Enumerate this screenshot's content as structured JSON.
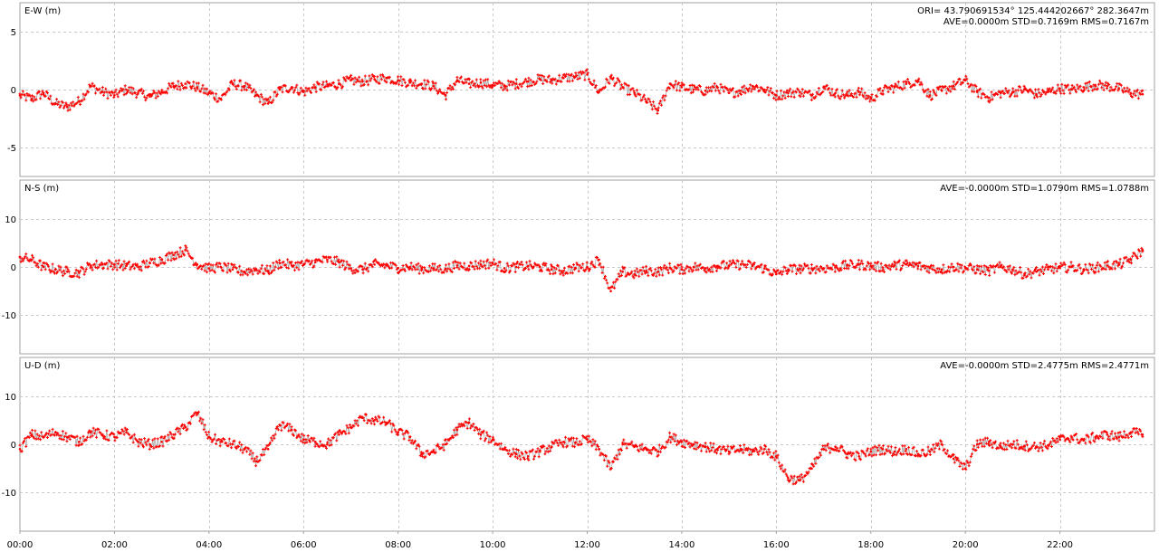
{
  "chart_data": [
    {
      "type": "scatter",
      "ylabel": "E-W (m)",
      "info": [
        "ORI= 43.790691534° 125.444202667° 282.3647m",
        "AVE=0.0000m STD=0.7169m RMS=0.7167m"
      ],
      "ylim": [
        -7.5,
        7.5
      ],
      "yticks": [
        5,
        0,
        -5
      ],
      "series": [
        {
          "color": "#ff0000",
          "x": [
            0.0,
            0.25,
            0.5,
            0.75,
            1.0,
            1.25,
            1.5,
            1.75,
            2.0,
            2.25,
            2.5,
            2.75,
            3.0,
            3.25,
            3.5,
            3.75,
            4.0,
            4.25,
            4.5,
            4.75,
            5.0,
            5.25,
            5.5,
            5.75,
            6.0,
            6.25,
            6.5,
            6.75,
            7.0,
            7.25,
            7.5,
            7.75,
            8.0,
            8.25,
            8.5,
            8.75,
            9.0,
            9.25,
            9.5,
            9.75,
            10.0,
            10.25,
            10.5,
            10.75,
            11.0,
            11.25,
            11.5,
            11.75,
            12.0,
            12.25,
            12.5,
            12.75,
            13.0,
            13.25,
            13.5,
            13.75,
            14.0,
            14.25,
            14.5,
            14.75,
            15.0,
            15.25,
            15.5,
            15.75,
            16.0,
            16.25,
            16.5,
            16.75,
            17.0,
            17.25,
            17.5,
            17.75,
            18.0,
            18.25,
            18.5,
            18.75,
            19.0,
            19.25,
            19.5,
            19.75,
            20.0,
            20.25,
            20.5,
            20.75,
            21.0,
            21.25,
            21.5,
            21.75,
            22.0,
            22.25,
            22.5,
            22.75,
            23.0,
            23.25,
            23.5,
            23.75
          ],
          "y": [
            -0.5,
            -0.8,
            -0.3,
            -1.2,
            -1.5,
            -1.0,
            0.3,
            -0.2,
            -0.5,
            0.0,
            -0.3,
            -0.6,
            -0.2,
            0.3,
            0.5,
            0.2,
            -0.3,
            -0.8,
            0.5,
            0.3,
            -0.5,
            -1.2,
            0.0,
            0.2,
            -0.2,
            0.2,
            0.3,
            0.5,
            0.8,
            0.7,
            0.9,
            1.0,
            0.8,
            0.6,
            0.5,
            0.3,
            -0.5,
            0.8,
            0.5,
            0.6,
            0.4,
            0.3,
            0.5,
            0.7,
            0.9,
            0.8,
            1.0,
            1.1,
            1.3,
            -0.2,
            1.0,
            0.2,
            -0.3,
            -1.0,
            -1.8,
            0.5,
            0.2,
            0.0,
            -0.1,
            0.2,
            -0.3,
            -0.1,
            0.3,
            0.0,
            -0.5,
            -0.3,
            -0.2,
            -0.5,
            0.2,
            -0.3,
            -0.5,
            -0.2,
            -0.8,
            -0.1,
            0.2,
            0.5,
            0.8,
            -0.5,
            -0.1,
            0.3,
            0.8,
            -0.2,
            -0.7,
            -0.3,
            -0.2,
            0.0,
            -0.4,
            -0.2,
            0.1,
            0.0,
            0.2,
            0.4,
            0.3,
            0.1,
            -0.3,
            -0.4
          ]
        }
      ]
    },
    {
      "type": "scatter",
      "ylabel": "N-S (m)",
      "info": [
        "AVE=-0.0000m STD=1.0790m RMS=1.0788m"
      ],
      "ylim": [
        -18,
        18
      ],
      "yticks": [
        10,
        0,
        -10
      ],
      "series": [
        {
          "color": "#ff0000",
          "x": [
            0.0,
            0.25,
            0.5,
            0.75,
            1.0,
            1.25,
            1.5,
            1.75,
            2.0,
            2.25,
            2.5,
            2.75,
            3.0,
            3.25,
            3.5,
            3.75,
            4.0,
            4.25,
            4.5,
            4.75,
            5.0,
            5.25,
            5.5,
            5.75,
            6.0,
            6.25,
            6.5,
            6.75,
            7.0,
            7.25,
            7.5,
            7.75,
            8.0,
            8.25,
            8.5,
            8.75,
            9.0,
            9.25,
            9.5,
            9.75,
            10.0,
            10.25,
            10.5,
            10.75,
            11.0,
            11.25,
            11.5,
            11.75,
            12.0,
            12.25,
            12.5,
            12.75,
            13.0,
            13.25,
            13.5,
            13.75,
            14.0,
            14.25,
            14.5,
            14.75,
            15.0,
            15.25,
            15.5,
            15.75,
            16.0,
            16.25,
            16.5,
            16.75,
            17.0,
            17.25,
            17.5,
            17.75,
            18.0,
            18.25,
            18.5,
            18.75,
            19.0,
            19.25,
            19.5,
            19.75,
            20.0,
            20.25,
            20.5,
            20.75,
            21.0,
            21.25,
            21.5,
            21.75,
            22.0,
            22.25,
            22.5,
            22.75,
            23.0,
            23.25,
            23.5,
            23.75
          ],
          "y": [
            2.0,
            1.5,
            0.0,
            -0.5,
            -1.0,
            -1.2,
            0.3,
            0.5,
            0.5,
            0.2,
            0.0,
            0.8,
            1.5,
            2.5,
            3.5,
            0.5,
            -0.3,
            0.0,
            -0.5,
            -1.0,
            -0.5,
            -0.8,
            0.8,
            0.3,
            0.5,
            1.0,
            1.5,
            1.0,
            -0.3,
            -0.5,
            0.5,
            0.3,
            -0.2,
            0.0,
            -0.4,
            -0.3,
            -0.4,
            0.3,
            0.2,
            0.5,
            0.8,
            -0.3,
            0.0,
            0.2,
            0.0,
            -0.5,
            -0.8,
            -0.2,
            0.0,
            1.5,
            -5.0,
            -1.0,
            -1.5,
            -0.8,
            -1.0,
            -0.2,
            -0.5,
            0.0,
            -0.3,
            0.2,
            0.3,
            0.5,
            0.2,
            -0.3,
            -1.5,
            -0.5,
            -0.4,
            -0.3,
            -0.3,
            -0.1,
            0.3,
            0.5,
            0.2,
            -0.1,
            0.3,
            0.5,
            0.2,
            -0.2,
            -0.5,
            0.0,
            -0.2,
            -0.5,
            -0.8,
            0.0,
            -0.5,
            -1.5,
            -1.0,
            -0.5,
            -0.2,
            0.0,
            -0.5,
            -0.2,
            0.3,
            0.5,
            1.5,
            3.5
          ]
        }
      ]
    },
    {
      "type": "scatter",
      "ylabel": "U-D (m)",
      "info": [
        "AVE=-0.0000m STD=2.4775m RMS=2.4771m"
      ],
      "ylim": [
        -18,
        18
      ],
      "yticks": [
        10,
        0,
        -10
      ],
      "series": [
        {
          "color": "#ff0000",
          "x": [
            0.0,
            0.25,
            0.5,
            0.75,
            1.0,
            1.25,
            1.5,
            1.75,
            2.0,
            2.25,
            2.5,
            2.75,
            3.0,
            3.25,
            3.5,
            3.75,
            4.0,
            4.25,
            4.5,
            4.75,
            5.0,
            5.25,
            5.5,
            5.75,
            6.0,
            6.25,
            6.5,
            6.75,
            7.0,
            7.25,
            7.5,
            7.75,
            8.0,
            8.25,
            8.5,
            8.75,
            9.0,
            9.25,
            9.5,
            9.75,
            10.0,
            10.25,
            10.5,
            10.75,
            11.0,
            11.25,
            11.5,
            11.75,
            12.0,
            12.25,
            12.5,
            12.75,
            13.0,
            13.25,
            13.5,
            13.75,
            14.0,
            14.25,
            14.5,
            14.75,
            15.0,
            15.25,
            15.5,
            15.75,
            16.0,
            16.25,
            16.5,
            16.75,
            17.0,
            17.25,
            17.5,
            17.75,
            18.0,
            18.25,
            18.5,
            18.75,
            19.0,
            19.25,
            19.5,
            19.75,
            20.0,
            20.25,
            20.5,
            20.75,
            21.0,
            21.25,
            21.5,
            21.75,
            22.0,
            22.25,
            22.5,
            22.75,
            23.0,
            23.25,
            23.5,
            23.75
          ],
          "y": [
            -1.0,
            2.0,
            1.5,
            2.5,
            1.5,
            0.5,
            2.5,
            2.0,
            1.5,
            2.5,
            0.5,
            0.0,
            0.5,
            2.0,
            3.5,
            6.5,
            1.5,
            0.5,
            0.0,
            -1.0,
            -3.5,
            -1.0,
            4.0,
            3.0,
            1.0,
            0.5,
            0.0,
            2.0,
            3.5,
            5.5,
            5.0,
            4.5,
            2.5,
            1.5,
            -2.0,
            -1.5,
            0.0,
            3.0,
            4.5,
            2.0,
            1.0,
            -1.0,
            -2.0,
            -2.5,
            -1.5,
            -0.5,
            0.5,
            0.3,
            1.0,
            -1.0,
            -5.0,
            0.0,
            -0.5,
            -1.0,
            -1.5,
            1.5,
            0.5,
            0.0,
            -0.5,
            -1.0,
            -1.5,
            -1.0,
            -1.5,
            -1.0,
            -2.5,
            -7.0,
            -7.5,
            -5.0,
            -1.0,
            -0.5,
            -2.0,
            -2.5,
            -1.5,
            -1.0,
            -1.5,
            -1.0,
            -2.0,
            -1.5,
            0.0,
            -3.0,
            -5.0,
            0.0,
            0.5,
            -0.5,
            0.0,
            -0.3,
            -0.5,
            -0.2,
            1.0,
            1.5,
            0.8,
            1.5,
            2.0,
            1.5,
            2.5,
            2.0
          ]
        }
      ]
    }
  ],
  "x_axis": {
    "range": [
      0,
      24
    ],
    "ticks": [
      0,
      2,
      4,
      6,
      8,
      10,
      12,
      14,
      16,
      18,
      20,
      22
    ],
    "tick_labels": [
      "00:00",
      "02:00",
      "04:00",
      "06:00",
      "08:00",
      "10:00",
      "12:00",
      "14:00",
      "16:00",
      "18:00",
      "20:00",
      "22:00"
    ]
  },
  "colors": {
    "points": "#ff0000",
    "connector": "#a8a8a8",
    "grid": "#c8c8c8",
    "frame": "#a0a0a0"
  }
}
